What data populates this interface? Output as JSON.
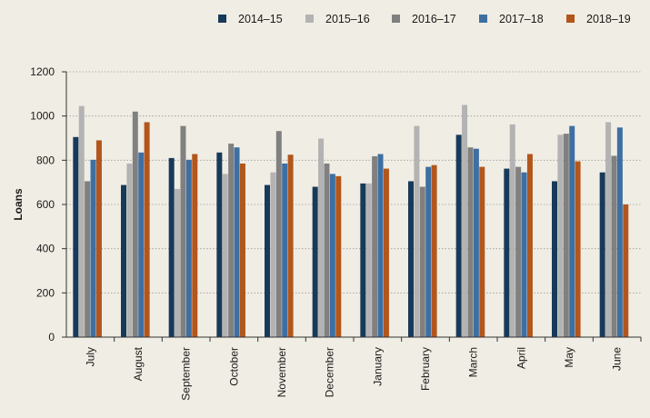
{
  "chart_data": {
    "type": "bar",
    "title": "",
    "xlabel": "",
    "ylabel": "Loans",
    "ylim": [
      0,
      1200
    ],
    "yticks": [
      0,
      200,
      400,
      600,
      800,
      1000,
      1200
    ],
    "grid": "horizontal dotted",
    "legend_position": "top-right",
    "categories": [
      "July",
      "August",
      "September",
      "October",
      "November",
      "December",
      "January",
      "February",
      "March",
      "April",
      "May",
      "June"
    ],
    "series": [
      {
        "name": "2014–15",
        "color": "#173a5a",
        "values": [
          905,
          688,
          810,
          835,
          688,
          680,
          695,
          705,
          915,
          762,
          705,
          745
        ]
      },
      {
        "name": "2015–16",
        "color": "#b3b3b3",
        "values": [
          1045,
          785,
          670,
          738,
          745,
          898,
          695,
          955,
          1050,
          962,
          915,
          972
        ]
      },
      {
        "name": "2016–17",
        "color": "#808080",
        "values": [
          705,
          1020,
          955,
          875,
          932,
          785,
          818,
          680,
          858,
          770,
          920,
          820
        ]
      },
      {
        "name": "2017–18",
        "color": "#3e6fa2",
        "values": [
          802,
          835,
          802,
          858,
          785,
          738,
          828,
          770,
          852,
          745,
          955,
          948
        ]
      },
      {
        "name": "2018–19",
        "color": "#b2561c",
        "values": [
          890,
          972,
          828,
          785,
          825,
          728,
          762,
          778,
          770,
          828,
          795,
          600
        ]
      }
    ]
  }
}
